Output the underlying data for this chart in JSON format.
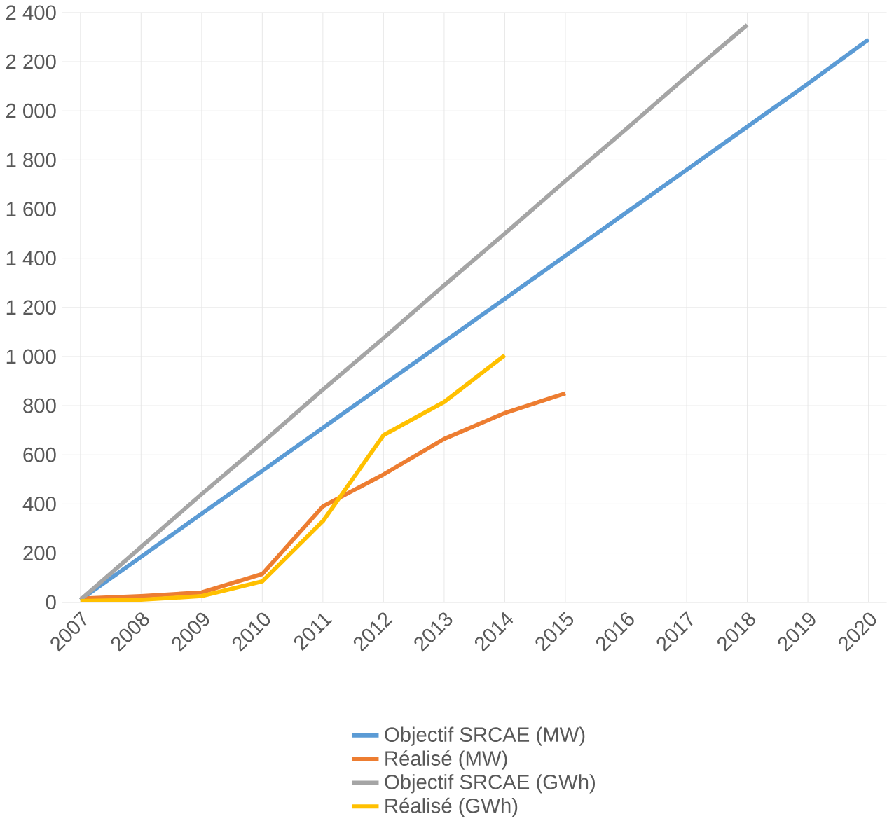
{
  "chart_data": {
    "type": "line",
    "categories": [
      "2007",
      "2008",
      "2009",
      "2010",
      "2011",
      "2012",
      "2013",
      "2014",
      "2015",
      "2016",
      "2017",
      "2018",
      "2019",
      "2020"
    ],
    "series": [
      {
        "name": "Objectif SRCAE (MW)",
        "color": "#5b9bd5",
        "values": [
          10,
          185,
          360,
          535,
          710,
          885,
          1060,
          1235,
          1410,
          1585,
          1760,
          1935,
          2110,
          2290
        ]
      },
      {
        "name": "Réalisé (MW)",
        "color": "#ed7d31",
        "values": [
          15,
          25,
          40,
          115,
          390,
          520,
          665,
          770,
          850,
          null,
          null,
          null,
          null,
          null
        ]
      },
      {
        "name": "Objectif SRCAE (GWh)",
        "color": "#a5a5a5",
        "values": [
          10,
          225,
          440,
          650,
          865,
          1075,
          1290,
          1500,
          1715,
          1925,
          2140,
          2350,
          null,
          null
        ]
      },
      {
        "name": "Réalisé (GWh)",
        "color": "#ffc000",
        "values": [
          5,
          10,
          25,
          85,
          330,
          680,
          815,
          1005,
          null,
          null,
          null,
          null,
          null,
          null
        ]
      }
    ],
    "ylim": [
      0,
      2400
    ],
    "yticks": [
      {
        "value": 0,
        "label": "0"
      },
      {
        "value": 200,
        "label": "200"
      },
      {
        "value": 400,
        "label": "400"
      },
      {
        "value": 600,
        "label": "600"
      },
      {
        "value": 800,
        "label": "800"
      },
      {
        "value": 1000,
        "label": "1 000"
      },
      {
        "value": 1200,
        "label": "1 200"
      },
      {
        "value": 1400,
        "label": "1 400"
      },
      {
        "value": 1600,
        "label": "1 600"
      },
      {
        "value": 1800,
        "label": "1 800"
      },
      {
        "value": 2000,
        "label": "2 000"
      },
      {
        "value": 2200,
        "label": "2 200"
      },
      {
        "value": 2400,
        "label": "2 400"
      }
    ],
    "grid": true,
    "legend": "bottom",
    "marker": "none",
    "line_style": "solid"
  }
}
